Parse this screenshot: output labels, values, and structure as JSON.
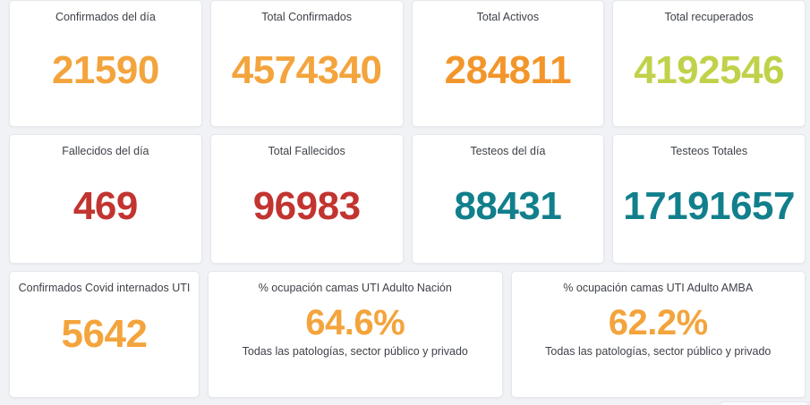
{
  "dashboard": {
    "background_color": "#f0f2f5",
    "card_background": "#ffffff",
    "card_border_color": "#e4e7ec",
    "title_color": "#3e4248",
    "value_colors": {
      "orange": "#f3a43c",
      "deep_orange": "#f2962b",
      "green": "#c1d14a",
      "red": "#c23430",
      "teal": "#117f8c"
    },
    "rows": [
      {
        "cards": [
          {
            "title": "Confirmados del día",
            "value": "21590",
            "color": "#f3a43c"
          },
          {
            "title": "Total Confirmados",
            "value": "4574340",
            "color": "#f3a43c"
          },
          {
            "title": "Total Activos",
            "value": "284811",
            "color": "#f2962b"
          },
          {
            "title": "Total recuperados",
            "value": "4192546",
            "color": "#c1d14a"
          }
        ]
      },
      {
        "cards": [
          {
            "title": "Fallecidos del día",
            "value": "469",
            "color": "#c23430"
          },
          {
            "title": "Total Fallecidos",
            "value": "96983",
            "color": "#c23430"
          },
          {
            "title": "Testeos del día",
            "value": "88431",
            "color": "#117f8c"
          },
          {
            "title": "Testeos Totales",
            "value": "17191657",
            "color": "#117f8c"
          }
        ]
      },
      {
        "cards": [
          {
            "title": "Confirmados Covid internados UTI",
            "value": "5642",
            "color": "#f3a43c"
          },
          {
            "title": "% ocupación camas UTI Adulto Nación",
            "value": "64.6%",
            "color": "#f3a43c",
            "subtitle": "Todas las patologías, sector público y privado"
          },
          {
            "title": "% ocupación camas UTI Adulto AMBA",
            "value": "62.2%",
            "color": "#f3a43c",
            "subtitle": "Todas las patologías, sector público y privado"
          }
        ]
      }
    ]
  }
}
